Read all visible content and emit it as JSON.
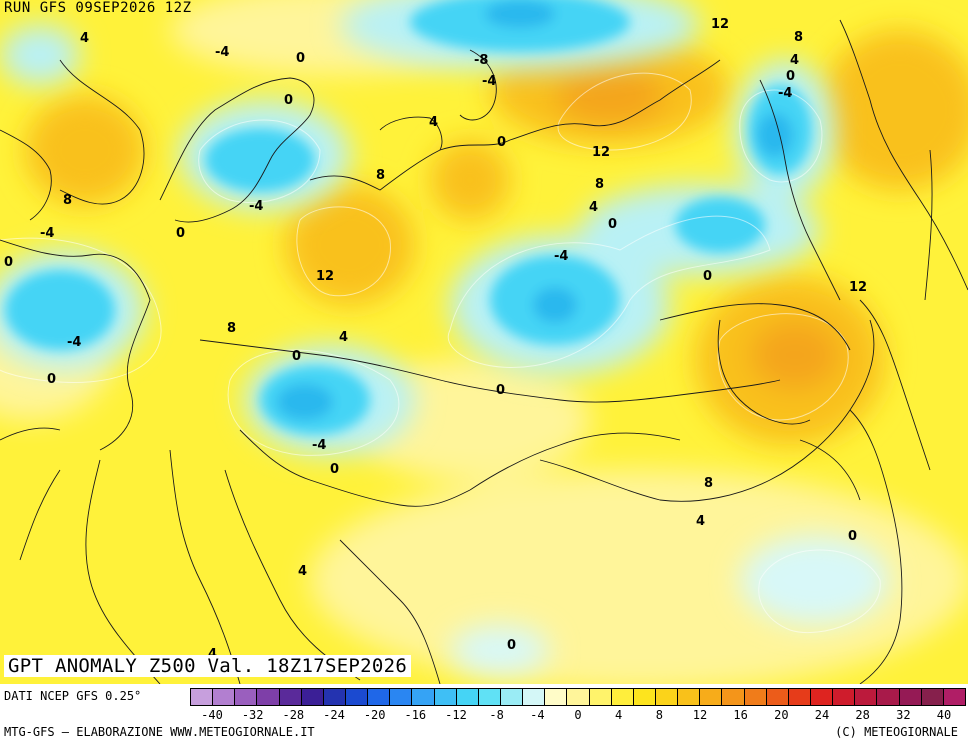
{
  "header": {
    "run_label": "RUN GFS 09SEP2026 12Z"
  },
  "title": {
    "text": "GPT ANOMALY Z500 Val. 18Z17SEP2026"
  },
  "source": {
    "text": "DATI NCEP GFS 0.25°"
  },
  "footer": {
    "left": "MTG-GFS — ELABORAZIONE WWW.METEOGIORNALE.IT",
    "right": "(C) METEOGIORNALE"
  },
  "colorbar": {
    "colors": [
      "#c79fdd",
      "#b27fd0",
      "#9a5fbe",
      "#7e3fa8",
      "#5a2a9a",
      "#3b1f96",
      "#2433b0",
      "#1b4ad0",
      "#1f67e8",
      "#2a86f2",
      "#35a3f5",
      "#3fbff5",
      "#45d4f5",
      "#60e1f5",
      "#9aecf5",
      "#d4f7f7",
      "#fffcc8",
      "#fff59a",
      "#fff36b",
      "#ffee3c",
      "#fde41e",
      "#fbd31a",
      "#f9c11a",
      "#f7ac1a",
      "#f4951a",
      "#f07c1a",
      "#ec5c1a",
      "#e63c1a",
      "#de2420",
      "#cf1c2c",
      "#bc1a3c",
      "#a81a4a",
      "#951a55",
      "#86204c",
      "#b01e66"
    ],
    "ticks": [
      "-40",
      "-32",
      "-28",
      "-24",
      "-20",
      "-16",
      "-12",
      "-8",
      "-4",
      "0",
      "4",
      "8",
      "12",
      "16",
      "20",
      "24",
      "28",
      "32",
      "40"
    ]
  },
  "contour_labels": [
    "4",
    "-4",
    "0",
    "-8",
    "-4",
    "0",
    "12",
    "8",
    "4",
    "0",
    "-4",
    "0",
    "4",
    "8",
    "12",
    "8",
    "8",
    "4",
    "0",
    "-4",
    "0",
    "0",
    "-4",
    "12",
    "-4",
    "0",
    "12",
    "8",
    "4",
    "0",
    "-4",
    "0",
    "0",
    "8",
    "4",
    "0",
    "-4",
    "0",
    "4",
    "0",
    "4"
  ],
  "palette": {
    "yellow": "#fff23a",
    "light_yellow": "#fff59a",
    "orange": "#f9c11a",
    "deep_orange": "#f4a51a",
    "light_cyan": "#b9f1f5",
    "cyan": "#45d4f5",
    "deep_cyan": "#2ab8ee",
    "blue": "#2a86f2"
  }
}
